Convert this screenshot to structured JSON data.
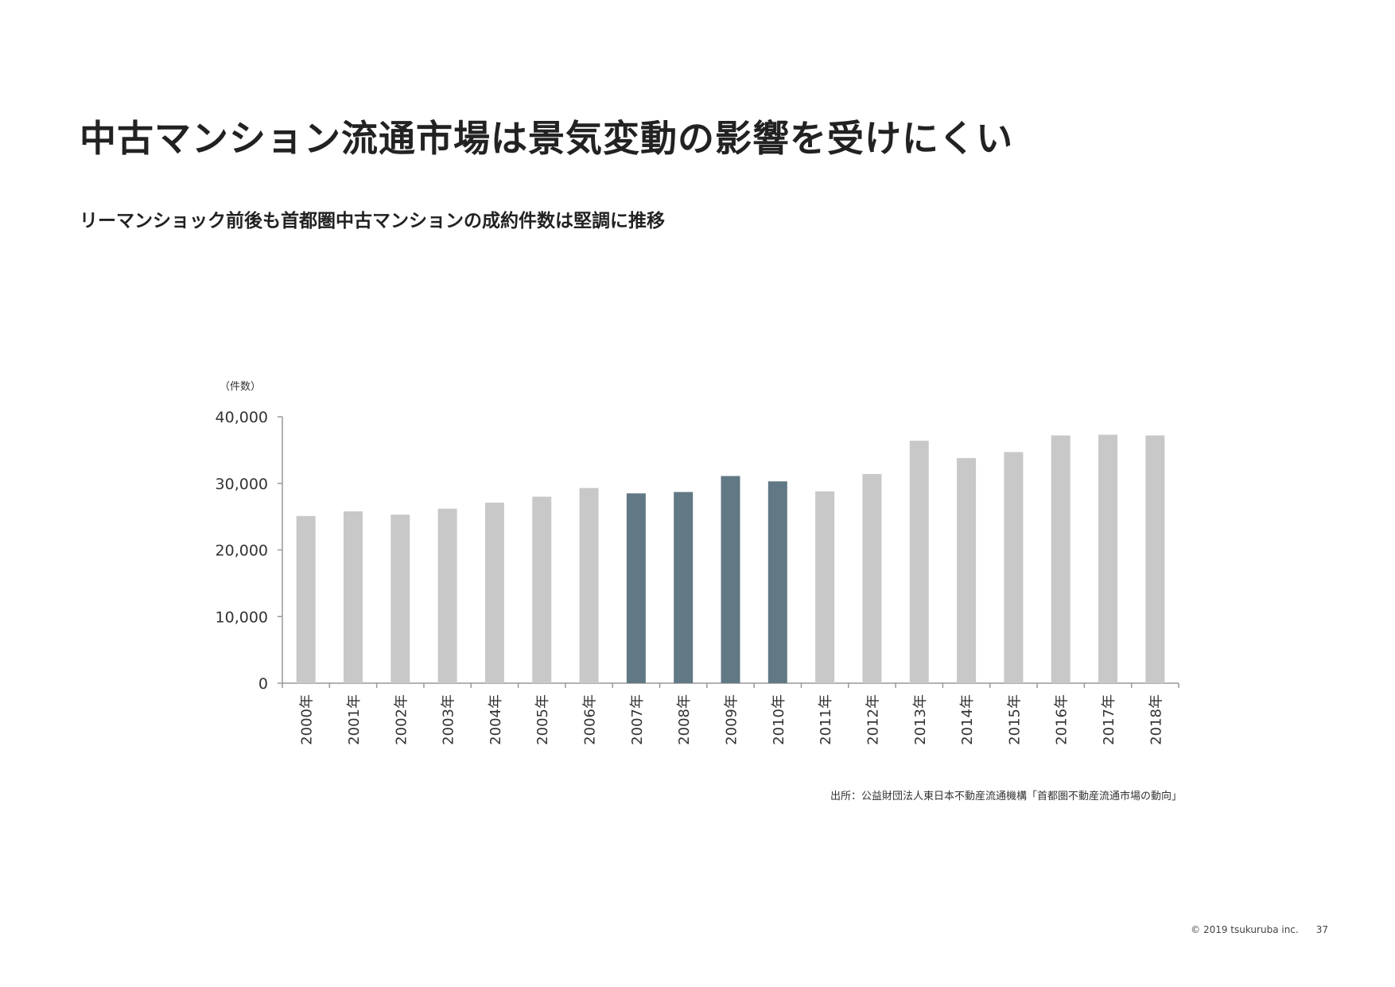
{
  "page": {
    "title": "中古マンション流通市場は景気変動の影響を受けにくい",
    "subtitle": "リーマンショック前後も首都圏中古マンションの成約件数は堅調に推移",
    "source": "出所：公益財団法人東日本不動産流通機構「首都圏不動産流通市場の動向」",
    "copyright": "© 2019 tsukuruba inc.",
    "page_number": "37"
  },
  "colors": {
    "bar_default": "#c8c8c8",
    "bar_highlight": "#617885",
    "axis": "#999999",
    "text": "#222222"
  },
  "chart_data": {
    "type": "bar",
    "title": "",
    "xlabel": "",
    "ylabel": "（件数）",
    "ylim": [
      0,
      40000
    ],
    "yticks": [
      0,
      10000,
      20000,
      30000,
      40000
    ],
    "ytick_labels": [
      "0",
      "10,000",
      "20,000",
      "30,000",
      "40,000"
    ],
    "grid": false,
    "legend": "none",
    "categories": [
      "2000年",
      "2001年",
      "2002年",
      "2003年",
      "2004年",
      "2005年",
      "2006年",
      "2007年",
      "2008年",
      "2009年",
      "2010年",
      "2011年",
      "2012年",
      "2013年",
      "2014年",
      "2015年",
      "2016年",
      "2017年",
      "2018年"
    ],
    "values": [
      25100,
      25800,
      25300,
      26200,
      27100,
      28000,
      29300,
      28500,
      28700,
      31100,
      30300,
      28800,
      31400,
      36400,
      33800,
      34700,
      37200,
      37300,
      37200
    ],
    "highlighted_categories": [
      "2007年",
      "2008年",
      "2009年",
      "2010年"
    ]
  }
}
